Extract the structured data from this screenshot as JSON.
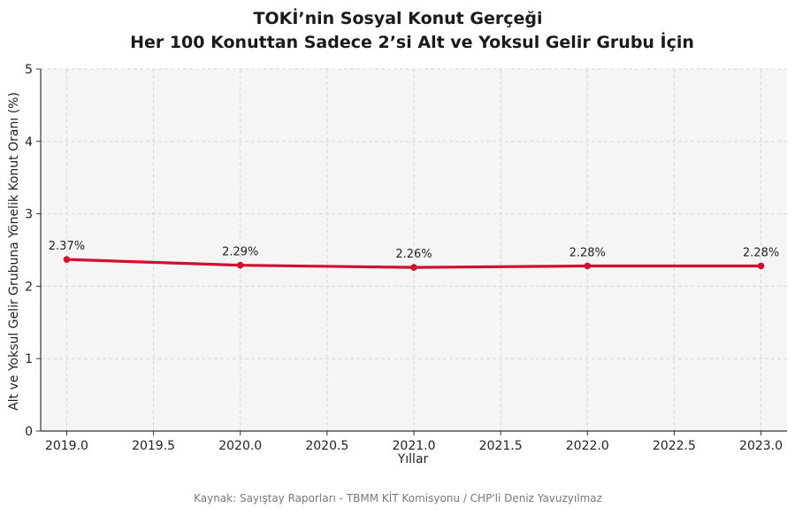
{
  "chart_data": {
    "type": "line",
    "title": [
      "TOKİ’nin Sosyal Konut Gerçeği",
      "Her 100 Konuttan Sadece 2’si Alt ve Yoksul Gelir Grubu İçin"
    ],
    "xlabel": "Yıllar",
    "ylabel": "Alt ve Yoksul Gelir Grubuna Yönelik Konut Oranı (%)",
    "x": [
      2019,
      2020,
      2021,
      2022,
      2023
    ],
    "series": [
      {
        "values": [
          2.37,
          2.29,
          2.26,
          2.28,
          2.28
        ],
        "labels": [
          "2.37%",
          "2.29%",
          "2.26%",
          "2.28%",
          "2.28%"
        ],
        "color": "#d0102f"
      }
    ],
    "xlim": [
      2018.85,
      2023.15
    ],
    "ylim": [
      0,
      5
    ],
    "xticks": [
      2019.0,
      2019.5,
      2020.0,
      2020.5,
      2021.0,
      2021.5,
      2022.0,
      2022.5,
      2023.0
    ],
    "xtick_labels": [
      "2019.0",
      "2019.5",
      "2020.0",
      "2020.5",
      "2021.0",
      "2021.5",
      "2022.0",
      "2022.5",
      "2023.0"
    ],
    "yticks": [
      0,
      1,
      2,
      3,
      4,
      5
    ],
    "ytick_labels": [
      "0",
      "1",
      "2",
      "3",
      "4",
      "5"
    ],
    "grid": true,
    "background_color": "#f5f5f5",
    "grid_color": "#d6d6d6"
  },
  "footer": {
    "source_text": "Kaynak: Sayıştay Raporları - TBMM KİT Komisyonu / CHP'li Deniz Yavuzyılmaz"
  }
}
